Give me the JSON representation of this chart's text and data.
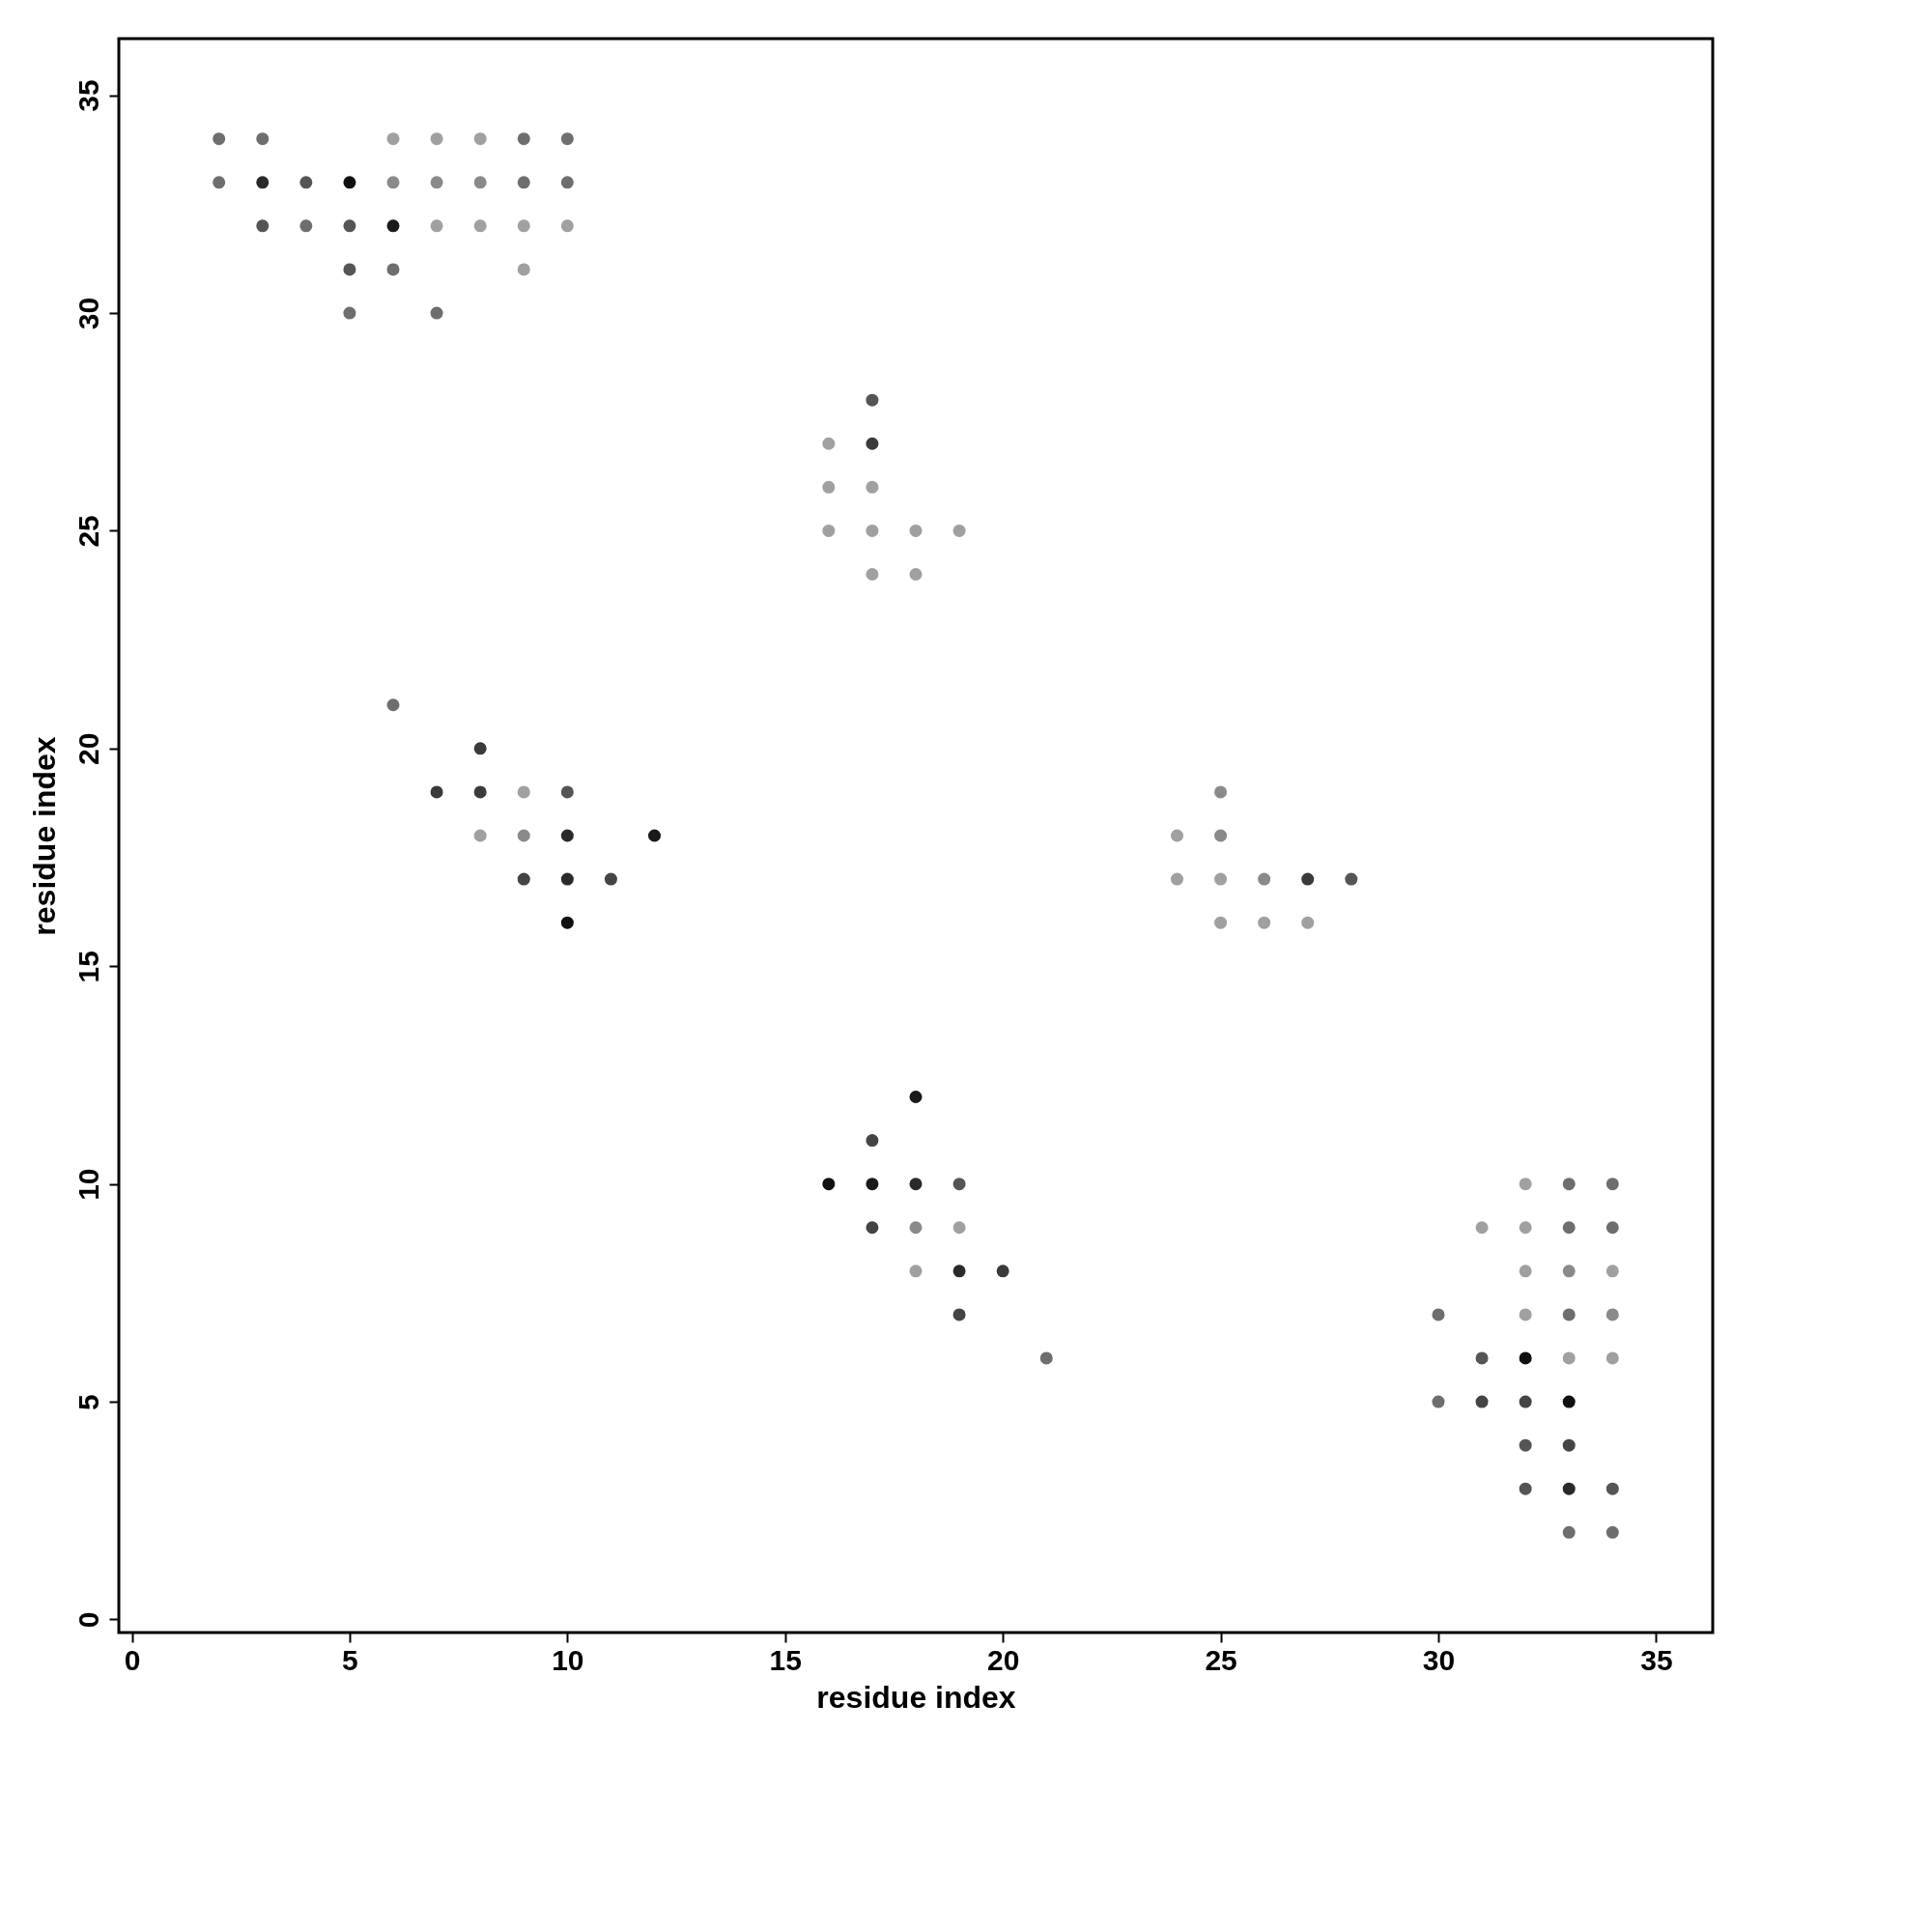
{
  "chart_data": {
    "type": "scatter",
    "xlabel": "residue index",
    "ylabel": "residue index",
    "xlim": [
      -0.3,
      36.3
    ],
    "ylim": [
      -0.3,
      36.3
    ],
    "xticks": [
      0,
      5,
      10,
      15,
      20,
      25,
      30,
      35
    ],
    "yticks": [
      0,
      5,
      10,
      15,
      20,
      25,
      30,
      35
    ],
    "grid": false,
    "marker": "circle",
    "series": [
      {
        "x": [
          2,
          3,
          6,
          7,
          8,
          9,
          10,
          2,
          3,
          4,
          5,
          6,
          7,
          8,
          9,
          10,
          3,
          4,
          5,
          6,
          7,
          8,
          9,
          10,
          5,
          6,
          9,
          5,
          7,
          17,
          16,
          17,
          16,
          17,
          16,
          17,
          18,
          19,
          17,
          18,
          6,
          8,
          7,
          8,
          9,
          10,
          8,
          9,
          10,
          12,
          9,
          10,
          11,
          10,
          25,
          24,
          25,
          24,
          25,
          26,
          27,
          28,
          25,
          26,
          27,
          18,
          17,
          16,
          17,
          18,
          19,
          17,
          18,
          19,
          18,
          19,
          20,
          19,
          21,
          32,
          33,
          34,
          31,
          32,
          33,
          34,
          32,
          33,
          34,
          30,
          32,
          33,
          34,
          31,
          32,
          33,
          34,
          30,
          31,
          32,
          33,
          32,
          33,
          32,
          33,
          34,
          33,
          34
        ],
        "values": [
          34,
          34,
          34,
          34,
          34,
          34,
          34,
          33,
          33,
          33,
          33,
          33,
          33,
          33,
          33,
          33,
          32,
          32,
          32,
          32,
          32,
          32,
          32,
          32,
          31,
          31,
          31,
          30,
          30,
          28,
          27,
          27,
          26,
          26,
          25,
          25,
          25,
          25,
          24,
          24,
          21,
          20,
          19,
          19,
          19,
          19,
          18,
          18,
          18,
          18,
          17,
          17,
          17,
          16,
          19,
          18,
          18,
          17,
          17,
          17,
          17,
          17,
          16,
          16,
          16,
          12,
          11,
          10,
          10,
          10,
          10,
          9,
          9,
          9,
          8,
          8,
          8,
          7,
          6,
          10,
          10,
          10,
          9,
          9,
          9,
          9,
          8,
          8,
          8,
          7,
          7,
          7,
          7,
          6,
          6,
          6,
          6,
          5,
          5,
          5,
          5,
          4,
          4,
          3,
          3,
          3,
          2,
          2
        ],
        "colors": [
          "#6e6e6e",
          "#6e6e6e",
          "#a0a0a0",
          "#a0a0a0",
          "#a0a0a0",
          "#6e6e6e",
          "#6e6e6e",
          "#6e6e6e",
          "#2a2a2a",
          "#555555",
          "#101010",
          "#8a8a8a",
          "#8a8a8a",
          "#8a8a8a",
          "#6e6e6e",
          "#6e6e6e",
          "#555555",
          "#6e6e6e",
          "#555555",
          "#1a1a1a",
          "#a0a0a0",
          "#a0a0a0",
          "#a0a0a0",
          "#a0a0a0",
          "#555555",
          "#6e6e6e",
          "#a0a0a0",
          "#6e6e6e",
          "#6e6e6e",
          "#555555",
          "#a0a0a0",
          "#3a3a3a",
          "#a0a0a0",
          "#a0a0a0",
          "#a0a0a0",
          "#a0a0a0",
          "#a0a0a0",
          "#a0a0a0",
          "#a0a0a0",
          "#a0a0a0",
          "#6e6e6e",
          "#3a3a3a",
          "#3a3a3a",
          "#3a3a3a",
          "#a0a0a0",
          "#555555",
          "#a0a0a0",
          "#8a8a8a",
          "#2a2a2a",
          "#1a1a1a",
          "#444444",
          "#2a2a2a",
          "#444444",
          "#101010",
          "#8a8a8a",
          "#a0a0a0",
          "#8a8a8a",
          "#a0a0a0",
          "#a0a0a0",
          "#8a8a8a",
          "#3a3a3a",
          "#555555",
          "#a0a0a0",
          "#a0a0a0",
          "#a0a0a0",
          "#1a1a1a",
          "#444444",
          "#101010",
          "#1a1a1a",
          "#2a2a2a",
          "#555555",
          "#444444",
          "#8a8a8a",
          "#a0a0a0",
          "#a0a0a0",
          "#2a2a2a",
          "#3a3a3a",
          "#444444",
          "#6e6e6e",
          "#a0a0a0",
          "#6e6e6e",
          "#6e6e6e",
          "#a0a0a0",
          "#a0a0a0",
          "#6e6e6e",
          "#6e6e6e",
          "#a0a0a0",
          "#8a8a8a",
          "#a0a0a0",
          "#6e6e6e",
          "#a0a0a0",
          "#6e6e6e",
          "#8a8a8a",
          "#555555",
          "#101010",
          "#a0a0a0",
          "#a0a0a0",
          "#6e6e6e",
          "#444444",
          "#444444",
          "#101010",
          "#555555",
          "#444444",
          "#555555",
          "#2a2a2a",
          "#555555",
          "#6e6e6e",
          "#6e6e6e"
        ]
      }
    ]
  }
}
